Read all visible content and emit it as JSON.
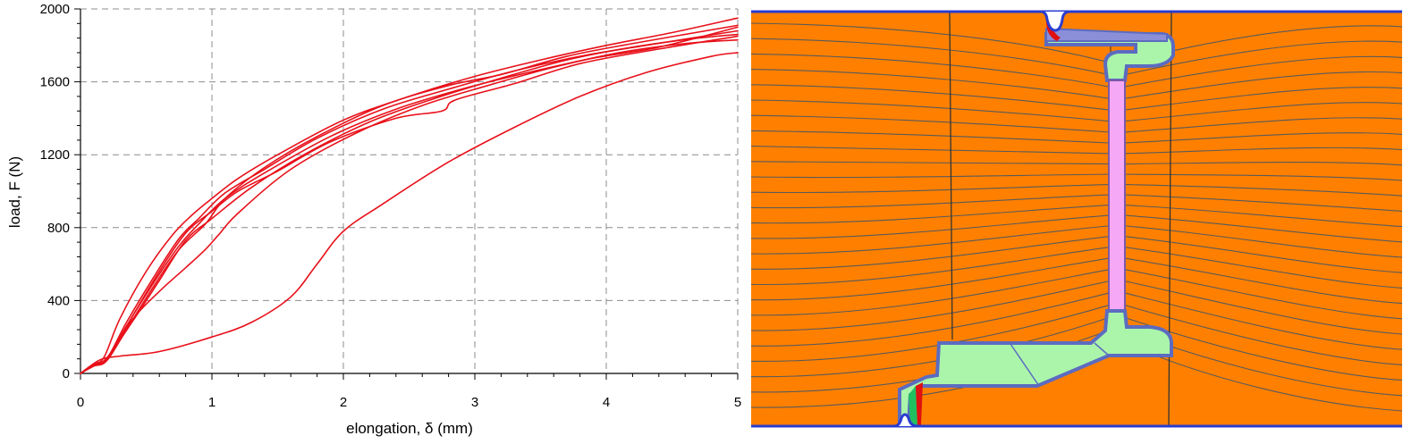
{
  "chart_data": {
    "type": "line",
    "xlabel": "elongation, δ (mm)",
    "ylabel": "load, F (N)",
    "xlim": [
      0,
      5
    ],
    "ylim": [
      0,
      2000
    ],
    "xticks": [
      "0",
      "1",
      "2",
      "3",
      "4",
      "5"
    ],
    "yticks": [
      "0",
      "400",
      "800",
      "1200",
      "1600",
      "2000"
    ],
    "grid": true,
    "line_color": "#e8101a",
    "series": [
      {
        "x": [
          0,
          0.1,
          0.18,
          0.3,
          0.5,
          0.7,
          0.85,
          1.0,
          1.2,
          1.5,
          2.0,
          2.5,
          3.0,
          3.5,
          4.0,
          4.5,
          5.0
        ],
        "y": [
          0,
          50,
          90,
          300,
          560,
          760,
          870,
          960,
          1070,
          1200,
          1390,
          1520,
          1630,
          1720,
          1800,
          1870,
          1950
        ]
      },
      {
        "x": [
          0,
          0.1,
          0.2,
          0.35,
          0.55,
          0.75,
          0.9,
          1.1,
          1.4,
          1.8,
          2.3,
          2.8,
          3.3,
          3.8,
          4.3,
          5.0
        ],
        "y": [
          0,
          45,
          80,
          280,
          520,
          740,
          850,
          990,
          1120,
          1290,
          1450,
          1560,
          1660,
          1740,
          1800,
          1880
        ]
      },
      {
        "x": [
          0,
          0.1,
          0.2,
          0.35,
          0.55,
          0.75,
          0.95,
          1.1,
          1.4,
          1.8,
          2.3,
          2.8,
          3.2,
          3.7,
          4.2,
          5.0
        ],
        "y": [
          0,
          40,
          70,
          240,
          470,
          680,
          820,
          960,
          1130,
          1300,
          1470,
          1580,
          1640,
          1740,
          1810,
          1910
        ]
      },
      {
        "x": [
          0,
          0.12,
          0.22,
          0.4,
          0.6,
          0.8,
          1.0,
          1.2,
          1.5,
          1.9,
          2.4,
          2.75,
          2.85,
          3.3,
          3.8,
          4.4,
          5.0
        ],
        "y": [
          0,
          55,
          90,
          320,
          560,
          770,
          890,
          1000,
          1110,
          1270,
          1400,
          1440,
          1500,
          1590,
          1700,
          1780,
          1850
        ]
      },
      {
        "x": [
          0,
          0.1,
          0.2,
          0.4,
          0.6,
          0.8,
          1.0,
          1.3,
          1.7,
          2.2,
          2.7,
          3.2,
          3.7,
          4.2,
          4.7,
          5.0
        ],
        "y": [
          0,
          45,
          85,
          290,
          510,
          730,
          850,
          1020,
          1200,
          1380,
          1510,
          1620,
          1720,
          1790,
          1840,
          1860
        ]
      },
      {
        "x": [
          0,
          0.1,
          0.2,
          0.4,
          0.6,
          0.8,
          0.95,
          1.05,
          1.2,
          1.6,
          2.1,
          2.6,
          3.1,
          3.6,
          4.1,
          4.6,
          5.0
        ],
        "y": [
          0,
          50,
          80,
          300,
          450,
          580,
          680,
          760,
          880,
          1120,
          1320,
          1470,
          1580,
          1680,
          1760,
          1810,
          1830
        ]
      },
      {
        "x": [
          0,
          0.1,
          0.2,
          0.35,
          0.55,
          0.75,
          0.9,
          1.1,
          1.4,
          1.9,
          2.4,
          2.9,
          3.4,
          3.9,
          4.4,
          5.0
        ],
        "y": [
          0,
          40,
          75,
          260,
          490,
          700,
          820,
          960,
          1100,
          1300,
          1450,
          1560,
          1650,
          1730,
          1790,
          1900
        ]
      },
      {
        "x": [
          0,
          0.15,
          0.3,
          0.6,
          1.0,
          1.3,
          1.6,
          1.8,
          2.0,
          2.3,
          2.8,
          3.3,
          3.8,
          4.3,
          4.8,
          5.0
        ],
        "y": [
          0,
          75,
          95,
          120,
          200,
          280,
          420,
          600,
          780,
          930,
          1160,
          1350,
          1520,
          1650,
          1740,
          1760
        ]
      }
    ]
  },
  "fem_image": {
    "background": "#ff8000",
    "contour_color": "#5a5a5a",
    "part_fill": "#aaf5aa",
    "part_outline": "#5c6bc0",
    "slot_fill": "#f5a8f5",
    "border_color": "#2a3cd0",
    "accent_red": "#e01010",
    "accent_green": "#20c060"
  }
}
